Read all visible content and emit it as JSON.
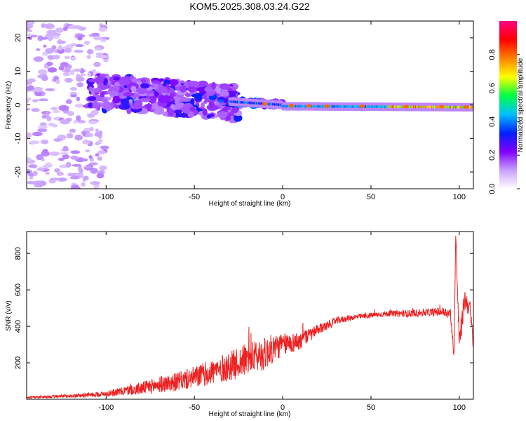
{
  "chart_data": [
    {
      "type": "heatmap",
      "title": "KOM5.2025.308.03.24.G22",
      "xlabel": "Height of straight line (km)",
      "ylabel": "Frequency (Hz)",
      "xlim": [
        -145,
        108
      ],
      "ylim": [
        -25,
        25
      ],
      "xticks": [
        "-100",
        "-50",
        "0",
        "50",
        "100"
      ],
      "yticks": [
        "-20",
        "-10",
        "0",
        "10",
        "20"
      ],
      "xtick_values": [
        -100,
        -50,
        0,
        50,
        100
      ],
      "ytick_values": [
        -20,
        -10,
        0,
        10,
        20
      ],
      "colorbar": {
        "label": "Normalized spectral amplitude",
        "range": [
          0,
          1
        ],
        "ticks": [
          "0.0",
          "0.2",
          "0.4",
          "0.6",
          "0.8"
        ],
        "tick_values": [
          0,
          0.2,
          0.4,
          0.6,
          0.8
        ],
        "colors": [
          "#ffffff",
          "#c8a0ff",
          "#8000ff",
          "#0020ff",
          "#00c0ff",
          "#00ff40",
          "#ffff00",
          "#ff8000",
          "#ff0000",
          "#ff0080"
        ]
      },
      "description_values": {
        "carrier_band_x": [
          -30,
          108
        ],
        "carrier_band_freq_hz": [
          -1.5,
          1.0
        ],
        "scatter_x": [
          -145,
          -100
        ],
        "scatter_freq_hz": [
          -25,
          25
        ],
        "cluster_x": [
          -110,
          -25
        ],
        "cluster_freq_hz": [
          -5,
          8
        ]
      }
    },
    {
      "type": "line",
      "title": "",
      "xlabel": "Height of straight line (km)",
      "ylabel": "SNR (v/v)",
      "xlim": [
        -145,
        108
      ],
      "ylim": [
        0,
        920
      ],
      "xticks": [
        "-100",
        "-50",
        "0",
        "50",
        "100"
      ],
      "yticks": [
        "200",
        "400",
        "600",
        "800"
      ],
      "xtick_values": [
        -100,
        -50,
        0,
        50,
        100
      ],
      "ytick_values": [
        200,
        400,
        600,
        800
      ],
      "color": "#ee2020",
      "series": [
        {
          "name": "SNR",
          "x": [
            -145,
            -130,
            -115,
            -100,
            -90,
            -80,
            -70,
            -60,
            -50,
            -40,
            -30,
            -20,
            -10,
            -5,
            0,
            10,
            20,
            30,
            40,
            50,
            60,
            70,
            80,
            90,
            95,
            97,
            98,
            100,
            103,
            106,
            108
          ],
          "y": [
            10,
            15,
            20,
            30,
            45,
            60,
            80,
            95,
            120,
            150,
            180,
            220,
            250,
            280,
            300,
            320,
            380,
            430,
            450,
            460,
            470,
            470,
            475,
            480,
            470,
            240,
            900,
            300,
            550,
            500,
            300
          ],
          "noise_amplitude": [
            5,
            8,
            10,
            15,
            25,
            35,
            45,
            50,
            60,
            70,
            80,
            90,
            90,
            80,
            60,
            50,
            30,
            20,
            15,
            15,
            15,
            20,
            20,
            25,
            30,
            20,
            40,
            60,
            60,
            50,
            40
          ]
        }
      ]
    }
  ]
}
